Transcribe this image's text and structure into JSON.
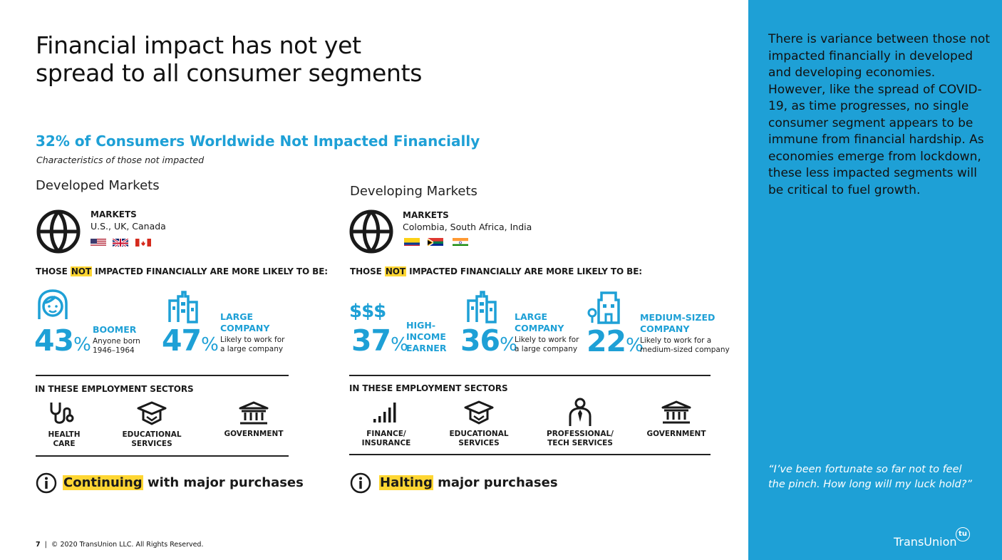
{
  "title_line1": "Financial impact has not yet",
  "title_line2": "spread to all consumer segments",
  "subhead": "32% of Consumers Worldwide Not Impacted Financially",
  "subcaption": "Characteristics of those not impacted",
  "developed": {
    "heading": "Developed Markets",
    "markets_label": "MARKETS",
    "markets_list": "U.S., UK, Canada",
    "likely_pre": "THOSE ",
    "likely_hl": "NOT",
    "likely_post": " IMPACTED FINANCIALLY ARE MORE LIKELY TO BE:",
    "stats": [
      {
        "value": "43",
        "unit": "%",
        "label_lines": [
          "BOOMER"
        ],
        "desc_lines": [
          "Anyone born",
          "1946–1964"
        ]
      },
      {
        "value": "47",
        "unit": "%",
        "label_lines": [
          "LARGE",
          "COMPANY"
        ],
        "desc_lines": [
          "Likely to work for",
          "a large company"
        ]
      }
    ],
    "sectors_label": "IN THESE EMPLOYMENT SECTORS",
    "sectors": [
      {
        "l1": "HEALTH",
        "l2": "CARE"
      },
      {
        "l1": "EDUCATIONAL",
        "l2": "SERVICES"
      },
      {
        "l1": "GOVERNMENT",
        "l2": ""
      }
    ],
    "purchase_hl": "Continuing",
    "purchase_rest": " with major purchases"
  },
  "developing": {
    "heading": "Developing Markets",
    "markets_label": "MARKETS",
    "markets_list": "Colombia, South Africa, India",
    "likely_pre": "THOSE ",
    "likely_hl": "NOT",
    "likely_post": " IMPACTED FINANCIALLY ARE MORE LIKELY TO BE:",
    "stats": [
      {
        "value": "37",
        "unit": "%",
        "label_lines": [
          "HIGH-",
          "INCOME",
          "EARNER"
        ],
        "desc_lines": []
      },
      {
        "value": "36",
        "unit": "%",
        "label_lines": [
          "LARGE",
          "COMPANY"
        ],
        "desc_lines": [
          "Likely to work for",
          "a large company"
        ]
      },
      {
        "value": "22",
        "unit": "%",
        "label_lines": [
          "MEDIUM-SIZED",
          "COMPANY"
        ],
        "desc_lines": [
          "Likely to work for a",
          "medium-sized company"
        ]
      }
    ],
    "dollar_icon": "$$$",
    "sectors_label": "IN THESE EMPLOYMENT SECTORS",
    "sectors": [
      {
        "l1": "FINANCE/",
        "l2": "INSURANCE"
      },
      {
        "l1": "EDUCATIONAL",
        "l2": "SERVICES"
      },
      {
        "l1": "PROFESSIONAL/",
        "l2": "TECH SERVICES"
      },
      {
        "l1": "GOVERNMENT",
        "l2": ""
      }
    ],
    "purchase_hl": "Halting",
    "purchase_rest": " major purchases"
  },
  "footer_page": "7",
  "footer_sep": "|",
  "footer_copy": "© 2020 TransUnion LLC. All Rights Reserved.",
  "side_text": "There is variance between those not impacted financially in developed and developing economies. However, like the spread of COVID-19, as time progresses, no single consumer segment appears to be immune from financial hardship. As economies emerge from lockdown, these less impacted segments will be critical to fuel growth.",
  "quote": "“I’ve been fortunate so far not to feel the pinch. How long will my luck hold?”",
  "logo_text": "TransUnion",
  "logo_mark": "tu",
  "colors": {
    "accent": "#1ea0d6",
    "highlight": "#ffd633",
    "sidebar": "#1ea0d6"
  },
  "icons": [
    "globe-icon",
    "woman-icon",
    "building-icon",
    "dollar-icon",
    "medium-building-icon",
    "stethoscope-icon",
    "graduation-cap-icon",
    "bank-icon",
    "bar-chart-icon",
    "person-tie-icon",
    "info-icon"
  ]
}
